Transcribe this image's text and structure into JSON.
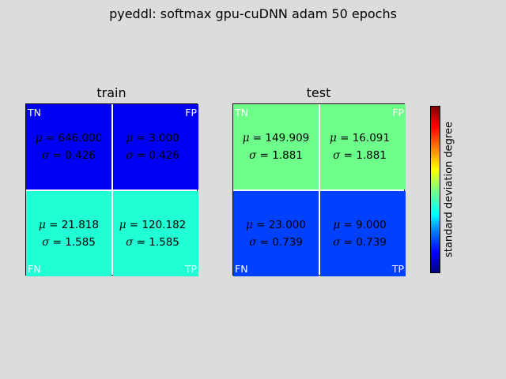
{
  "title": "pyeddl: softmax gpu-cuDNN adam 50 epochs",
  "colorbar": {
    "label": "standard deviation degree"
  },
  "chart_data": {
    "type": "heatmap",
    "title": "pyeddl: softmax gpu-cuDNN adam 50 epochs",
    "panels": [
      {
        "name": "train",
        "cells": {
          "TN": {
            "label": "TN",
            "mu": "646.000",
            "sigma": "0.426",
            "color": "#0000f4"
          },
          "FP": {
            "label": "FP",
            "mu": "3.000",
            "sigma": "0.426",
            "color": "#0000f4"
          },
          "FN": {
            "label": "FN",
            "mu": "21.818",
            "sigma": "1.585",
            "color": "#21ffd4"
          },
          "TP": {
            "label": "TP",
            "mu": "120.182",
            "sigma": "1.585",
            "color": "#21ffd4"
          }
        }
      },
      {
        "name": "test",
        "cells": {
          "TN": {
            "label": "TN",
            "mu": "149.909",
            "sigma": "1.881",
            "color": "#6dff8a"
          },
          "FP": {
            "label": "FP",
            "mu": "16.091",
            "sigma": "1.881",
            "color": "#6dff8a"
          },
          "FN": {
            "label": "FN",
            "mu": "23.000",
            "sigma": "0.739",
            "color": "#0040ff"
          },
          "TP": {
            "label": "TP",
            "mu": "9.000",
            "sigma": "0.739",
            "color": "#0040ff"
          }
        }
      }
    ]
  }
}
